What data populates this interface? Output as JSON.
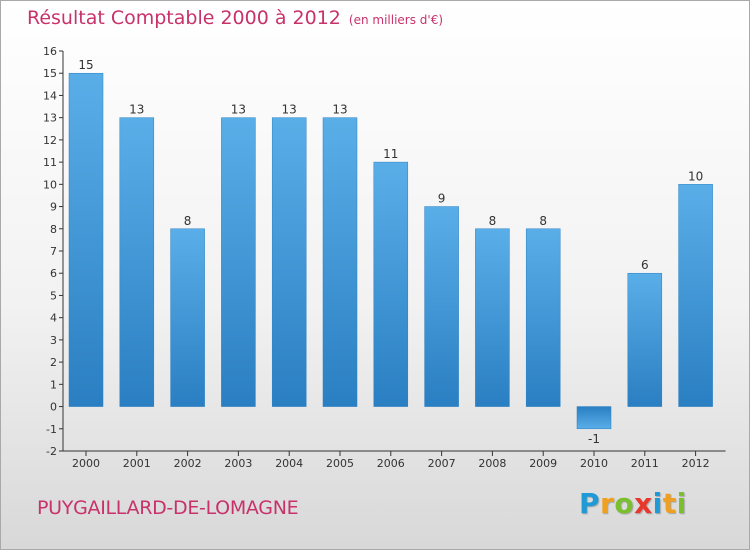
{
  "header": {
    "title": "Résultat Comptable 2000 à 2012",
    "subtitle": "(en milliers d'€)"
  },
  "footer": {
    "commune": "PUYGAILLARD-DE-LOMAGNE",
    "brand_letters": [
      "P",
      "r",
      "o",
      "x",
      "i",
      "t",
      "i"
    ],
    "brand_colors": [
      "#1f9ad6",
      "#f0a020",
      "#7bbf2e",
      "#e8382b",
      "#1f9ad6",
      "#f0a020",
      "#7bbf2e"
    ]
  },
  "colors": {
    "bar_light": "#5aaee8",
    "bar_dark": "#2a7fc2",
    "accent": "#c8326a"
  },
  "chart_data": {
    "type": "bar",
    "title": "Résultat Comptable 2000 à 2012",
    "ylabel": "en milliers d'€",
    "xlabel": "",
    "categories": [
      "2000",
      "2001",
      "2002",
      "2003",
      "2004",
      "2005",
      "2006",
      "2007",
      "2008",
      "2009",
      "2010",
      "2011",
      "2012"
    ],
    "values": [
      15,
      13,
      8,
      13,
      13,
      13,
      11,
      9,
      8,
      8,
      -1,
      6,
      10
    ],
    "value_labels": [
      "15",
      "13",
      "8",
      "13",
      "13",
      "13",
      "11",
      "9",
      "8",
      "8",
      "-1",
      "6",
      "10"
    ],
    "ylim": [
      -2,
      16
    ],
    "yticks": [
      "-2",
      "-1",
      "0",
      "1",
      "2",
      "3",
      "4",
      "5",
      "6",
      "7",
      "8",
      "9",
      "10",
      "11",
      "12",
      "13",
      "14",
      "15",
      "16"
    ],
    "grid": false,
    "legend": "none"
  }
}
